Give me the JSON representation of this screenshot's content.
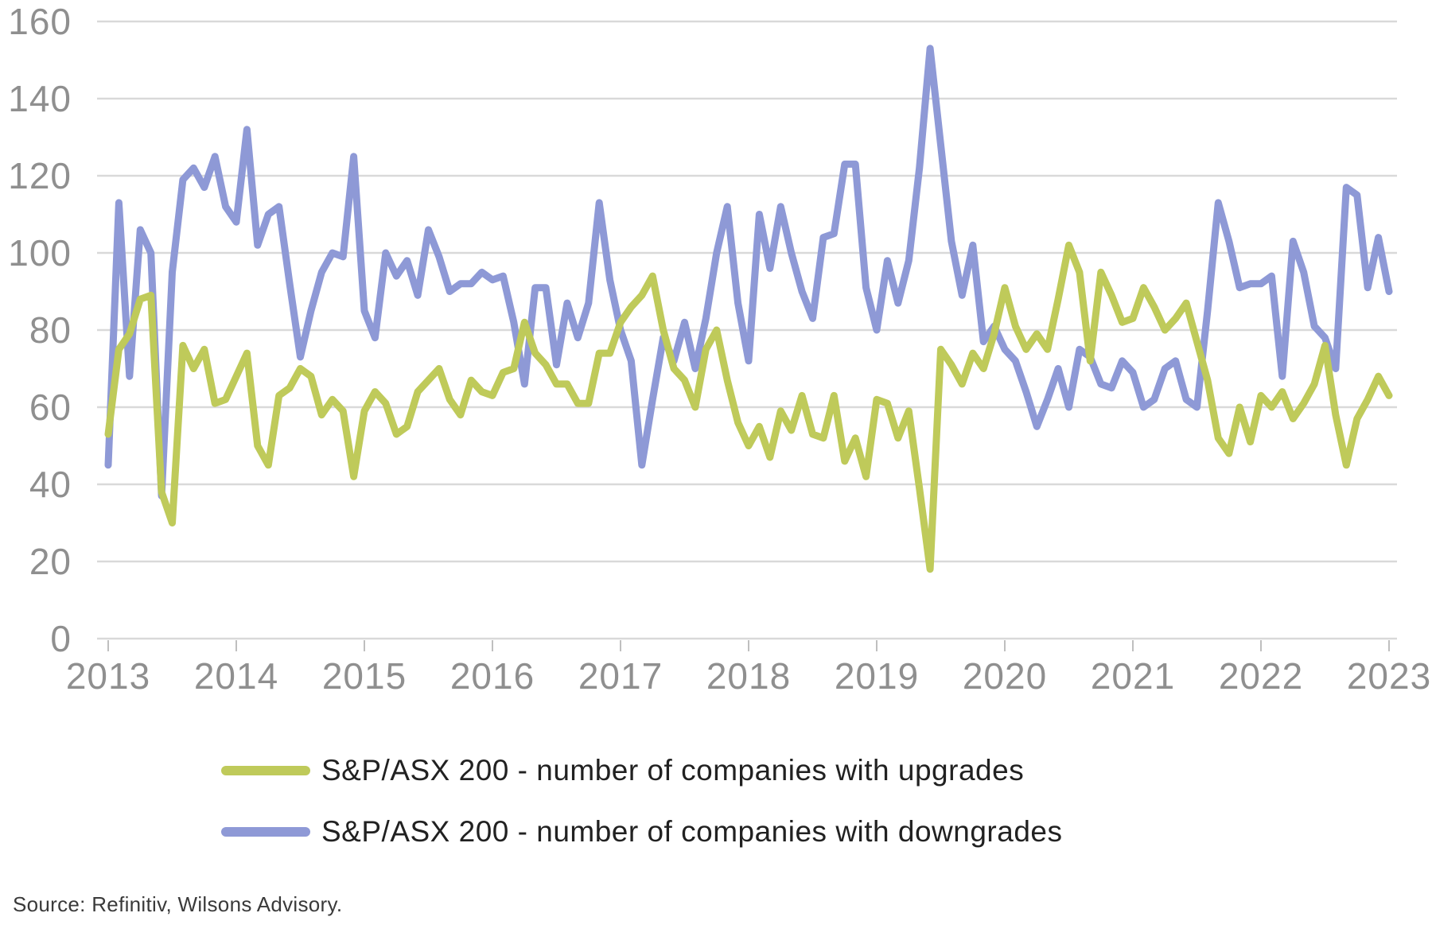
{
  "source_note": "Source: Refinitiv, Wilsons Advisory.",
  "colors": {
    "upgrades": "#bfca5a",
    "downgrades": "#8e99d6",
    "gridline": "#d9d9d9",
    "axis_tick": "#bfbfbf",
    "axis_label": "#8f8f8f",
    "legend_text": "#212121"
  },
  "legend": [
    {
      "label": "S&P/ASX 200 - number of companies with upgrades",
      "color": "#bfca5a"
    },
    {
      "label": "S&P/ASX 200 - number of companies with downgrades",
      "color": "#8e99d6"
    }
  ],
  "chart_data": {
    "type": "line",
    "title": "",
    "xlabel": "",
    "ylabel": "",
    "x_frequency": "monthly",
    "x_start": "2013-01",
    "x_end": "2023-01",
    "x_tick_labels": [
      "2013",
      "2014",
      "2015",
      "2016",
      "2017",
      "2018",
      "2019",
      "2020",
      "2021",
      "2022",
      "2023"
    ],
    "ylim": [
      0,
      160
    ],
    "yticks": [
      0,
      20,
      40,
      60,
      80,
      100,
      120,
      140,
      160
    ],
    "grid": "horizontal",
    "legend_position": "bottom",
    "series": [
      {
        "name": "S&P/ASX 200 - number of companies with upgrades",
        "color": "#bfca5a",
        "values": [
          53,
          75,
          79,
          88,
          89,
          38,
          30,
          76,
          70,
          75,
          61,
          62,
          68,
          74,
          50,
          45,
          63,
          65,
          70,
          68,
          58,
          62,
          59,
          42,
          59,
          64,
          61,
          53,
          55,
          64,
          67,
          70,
          62,
          58,
          67,
          64,
          63,
          69,
          70,
          82,
          74,
          71,
          66,
          66,
          61,
          61,
          74,
          74,
          82,
          86,
          89,
          94,
          80,
          70,
          67,
          60,
          75,
          80,
          67,
          56,
          50,
          55,
          47,
          59,
          54,
          63,
          53,
          52,
          63,
          46,
          52,
          42,
          62,
          61,
          52,
          59,
          39,
          18,
          75,
          71,
          66,
          74,
          70,
          79,
          91,
          81,
          75,
          79,
          75,
          88,
          102,
          95,
          72,
          95,
          89,
          82,
          83,
          91,
          86,
          80,
          83,
          87,
          77,
          67,
          52,
          48,
          60,
          51,
          63,
          60,
          64,
          57,
          61,
          66,
          76,
          58,
          45,
          57,
          62,
          68,
          63
        ]
      },
      {
        "name": "S&P/ASX 200 - number of companies with downgrades",
        "color": "#8e99d6",
        "values": [
          45,
          113,
          68,
          106,
          100,
          37,
          95,
          119,
          122,
          117,
          125,
          112,
          108,
          132,
          102,
          110,
          112,
          92,
          73,
          85,
          95,
          100,
          99,
          125,
          85,
          78,
          100,
          94,
          98,
          89,
          106,
          99,
          90,
          92,
          92,
          95,
          93,
          94,
          82,
          66,
          91,
          91,
          71,
          87,
          78,
          87,
          113,
          93,
          80,
          72,
          45,
          62,
          78,
          72,
          82,
          70,
          83,
          100,
          112,
          87,
          72,
          110,
          96,
          112,
          100,
          90,
          83,
          104,
          105,
          123,
          123,
          91,
          80,
          98,
          87,
          98,
          122,
          153,
          128,
          103,
          89,
          102,
          77,
          81,
          75,
          72,
          64,
          55,
          62,
          70,
          60,
          75,
          73,
          66,
          65,
          72,
          69,
          60,
          62,
          70,
          72,
          62,
          60,
          85,
          113,
          103,
          91,
          92,
          92,
          94,
          68,
          103,
          95,
          81,
          78,
          70,
          117,
          115,
          91,
          104,
          90
        ]
      }
    ]
  }
}
